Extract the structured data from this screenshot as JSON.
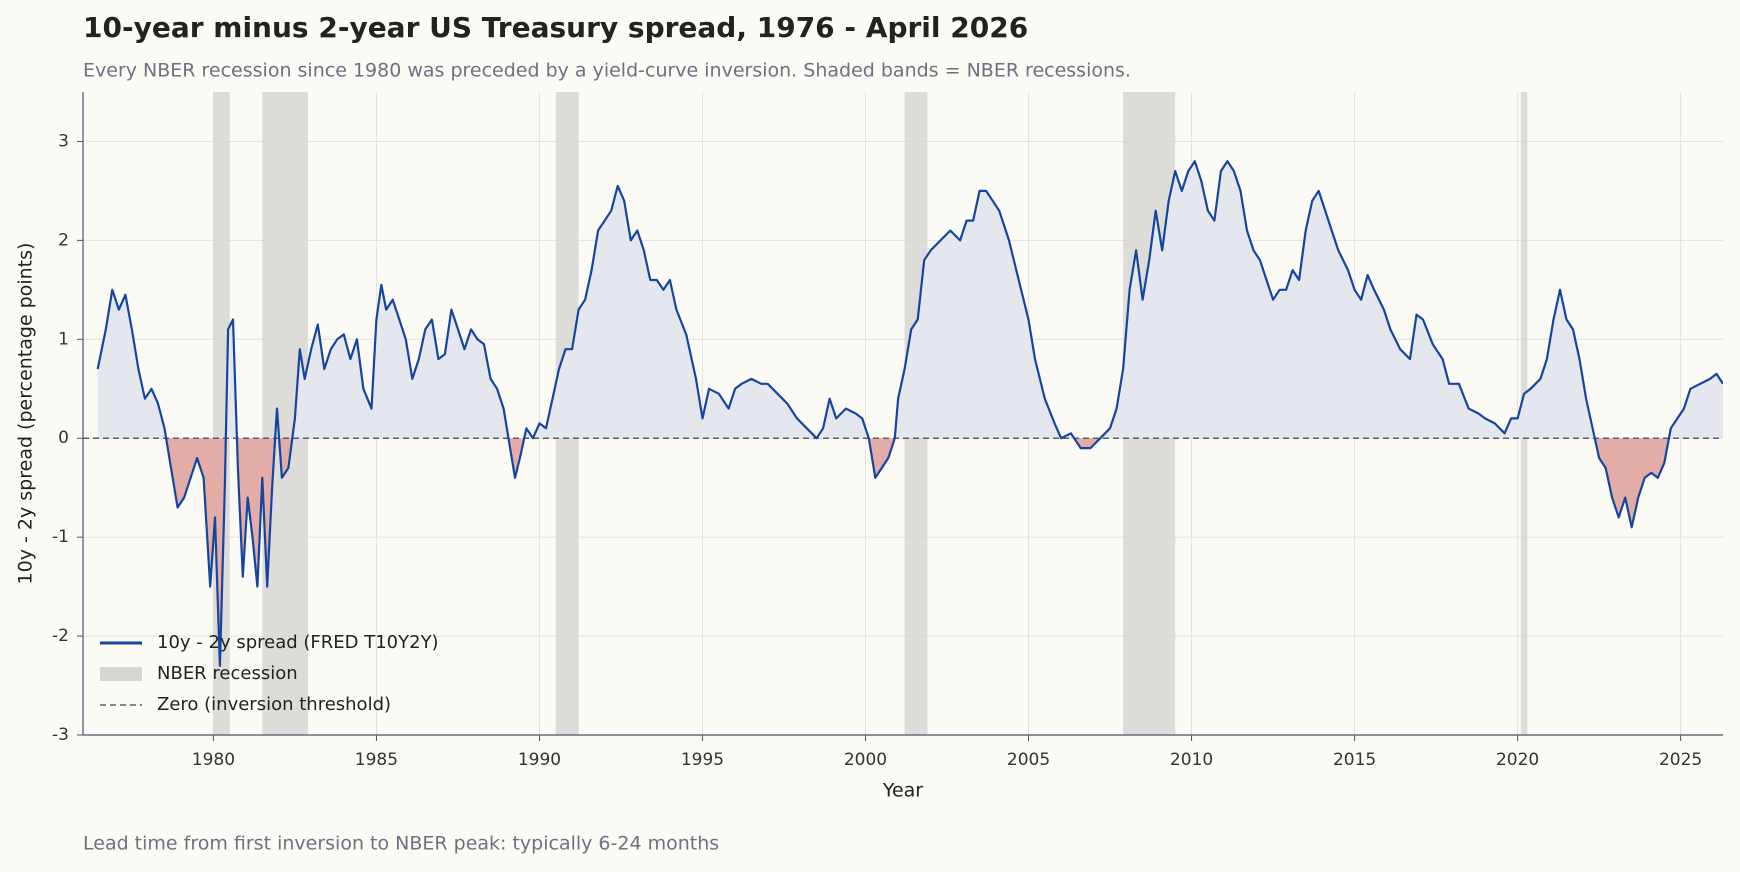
{
  "chart_data": {
    "type": "line",
    "title": "10-year minus 2-year US Treasury spread, 1976 - April 2026",
    "subtitle": "Every NBER recession since 1980 was preceded by a yield-curve inversion. Shaded bands = NBER recessions.",
    "x_label": "Year",
    "y_label": "10y - 2y spread (percentage points)",
    "note": "Lead time from first inversion to NBER peak: typically 6-24 months",
    "xlim": [
      1976,
      2026.3
    ],
    "ylim": [
      -3,
      3.5
    ],
    "xticks": [
      1980,
      1985,
      1990,
      1995,
      2000,
      2005,
      2010,
      2015,
      2020,
      2025
    ],
    "yticks": [
      -3,
      -2,
      -1,
      0,
      1,
      2,
      3
    ],
    "grid": true,
    "legend": "lower left",
    "positive_fill": "#e4e7ee",
    "negative_fill": "#e3aca6",
    "recession_label": "NBER recession",
    "recession_color": "#d6d5d1",
    "recessions": [
      [
        1980.0,
        1980.5
      ],
      [
        1981.5,
        1982.9
      ],
      [
        1990.5,
        1991.2
      ],
      [
        2001.2,
        2001.9
      ],
      [
        2007.9,
        2009.5
      ],
      [
        2020.1,
        2020.3
      ]
    ],
    "reference_line": {
      "value": 0,
      "label": "Zero (inversion threshold)",
      "color": "#5a5f6b"
    },
    "series": [
      {
        "name": "10y - 2y spread (FRED T10Y2Y)",
        "color": "#1446a0",
        "x": [
          1976.45,
          1976.7,
          1976.9,
          1977.1,
          1977.3,
          1977.5,
          1977.7,
          1977.9,
          1978.1,
          1978.3,
          1978.5,
          1978.7,
          1978.9,
          1979.1,
          1979.3,
          1979.5,
          1979.7,
          1979.9,
          1980.05,
          1980.2,
          1980.35,
          1980.45,
          1980.6,
          1980.75,
          1980.9,
          1981.05,
          1981.2,
          1981.35,
          1981.5,
          1981.65,
          1981.8,
          1981.95,
          1982.1,
          1982.3,
          1982.5,
          1982.65,
          1982.8,
          1983.0,
          1983.2,
          1983.4,
          1983.6,
          1983.8,
          1984.0,
          1984.2,
          1984.4,
          1984.6,
          1984.85,
          1985.0,
          1985.15,
          1985.3,
          1985.5,
          1985.7,
          1985.9,
          1986.1,
          1986.3,
          1986.5,
          1986.7,
          1986.9,
          1987.1,
          1987.3,
          1987.5,
          1987.7,
          1987.9,
          1988.1,
          1988.3,
          1988.5,
          1988.7,
          1988.9,
          1989.1,
          1989.25,
          1989.4,
          1989.6,
          1989.8,
          1990.0,
          1990.2,
          1990.4,
          1990.6,
          1990.8,
          1991.0,
          1991.2,
          1991.4,
          1991.6,
          1991.8,
          1992.0,
          1992.2,
          1992.4,
          1992.6,
          1992.8,
          1993.0,
          1993.2,
          1993.4,
          1993.6,
          1993.8,
          1994.0,
          1994.2,
          1994.5,
          1994.8,
          1995.0,
          1995.2,
          1995.5,
          1995.8,
          1996.0,
          1996.2,
          1996.5,
          1996.8,
          1997.0,
          1997.3,
          1997.6,
          1997.9,
          1998.2,
          1998.5,
          1998.7,
          1998.9,
          1999.1,
          1999.4,
          1999.7,
          1999.9,
          2000.1,
          2000.3,
          2000.5,
          2000.7,
          2000.9,
          2001.0,
          2001.2,
          2001.4,
          2001.6,
          2001.8,
          2002.0,
          2002.3,
          2002.6,
          2002.9,
          2003.1,
          2003.3,
          2003.5,
          2003.7,
          2003.9,
          2004.1,
          2004.4,
          2004.7,
          2005.0,
          2005.2,
          2005.5,
          2005.8,
          2006.0,
          2006.3,
          2006.6,
          2006.9,
          2007.2,
          2007.5,
          2007.7,
          2007.9,
          2008.1,
          2008.3,
          2008.5,
          2008.7,
          2008.9,
          2009.1,
          2009.3,
          2009.5,
          2009.7,
          2009.9,
          2010.1,
          2010.3,
          2010.5,
          2010.7,
          2010.9,
          2011.1,
          2011.3,
          2011.5,
          2011.7,
          2011.9,
          2012.1,
          2012.3,
          2012.5,
          2012.7,
          2012.9,
          2013.1,
          2013.3,
          2013.5,
          2013.7,
          2013.9,
          2014.1,
          2014.3,
          2014.5,
          2014.8,
          2015.0,
          2015.2,
          2015.4,
          2015.6,
          2015.9,
          2016.1,
          2016.4,
          2016.7,
          2016.9,
          2017.1,
          2017.4,
          2017.7,
          2017.9,
          2018.2,
          2018.5,
          2018.8,
          2019.0,
          2019.3,
          2019.6,
          2019.8,
          2020.0,
          2020.2,
          2020.4,
          2020.7,
          2020.9,
          2021.1,
          2021.3,
          2021.5,
          2021.7,
          2021.9,
          2022.1,
          2022.3,
          2022.5,
          2022.7,
          2022.9,
          2023.1,
          2023.3,
          2023.5,
          2023.7,
          2023.9,
          2024.1,
          2024.3,
          2024.5,
          2024.7,
          2024.9,
          2025.1,
          2025.3,
          2025.6,
          2025.9,
          2026.1,
          2026.3
        ],
        "values": [
          0.7,
          1.1,
          1.5,
          1.3,
          1.45,
          1.1,
          0.7,
          0.4,
          0.5,
          0.35,
          0.1,
          -0.3,
          -0.7,
          -0.6,
          -0.4,
          -0.2,
          -0.4,
          -1.5,
          -0.8,
          -2.3,
          -0.5,
          1.1,
          1.2,
          -0.3,
          -1.4,
          -0.6,
          -1.0,
          -1.5,
          -0.4,
          -1.5,
          -0.5,
          0.3,
          -0.4,
          -0.3,
          0.2,
          0.9,
          0.6,
          0.9,
          1.15,
          0.7,
          0.9,
          1.0,
          1.05,
          0.8,
          1.0,
          0.5,
          0.3,
          1.2,
          1.55,
          1.3,
          1.4,
          1.2,
          1.0,
          0.6,
          0.8,
          1.1,
          1.2,
          0.8,
          0.85,
          1.3,
          1.1,
          0.9,
          1.1,
          1.0,
          0.95,
          0.6,
          0.5,
          0.3,
          -0.1,
          -0.4,
          -0.2,
          0.1,
          0.0,
          0.15,
          0.1,
          0.4,
          0.7,
          0.9,
          0.9,
          1.3,
          1.4,
          1.7,
          2.1,
          2.2,
          2.3,
          2.55,
          2.4,
          2.0,
          2.1,
          1.9,
          1.6,
          1.6,
          1.5,
          1.6,
          1.3,
          1.05,
          0.6,
          0.2,
          0.5,
          0.45,
          0.3,
          0.5,
          0.55,
          0.6,
          0.55,
          0.55,
          0.45,
          0.35,
          0.2,
          0.1,
          0.0,
          0.1,
          0.4,
          0.2,
          0.3,
          0.25,
          0.2,
          0.0,
          -0.4,
          -0.3,
          -0.2,
          0.0,
          0.4,
          0.7,
          1.1,
          1.2,
          1.8,
          1.9,
          2.0,
          2.1,
          2.0,
          2.2,
          2.2,
          2.5,
          2.5,
          2.4,
          2.3,
          2.0,
          1.6,
          1.2,
          0.8,
          0.4,
          0.15,
          0.0,
          0.05,
          -0.1,
          -0.1,
          0.0,
          0.1,
          0.3,
          0.7,
          1.5,
          1.9,
          1.4,
          1.8,
          2.3,
          1.9,
          2.4,
          2.7,
          2.5,
          2.7,
          2.8,
          2.6,
          2.3,
          2.2,
          2.7,
          2.8,
          2.7,
          2.5,
          2.1,
          1.9,
          1.8,
          1.6,
          1.4,
          1.5,
          1.5,
          1.7,
          1.6,
          2.1,
          2.4,
          2.5,
          2.3,
          2.1,
          1.9,
          1.7,
          1.5,
          1.4,
          1.65,
          1.5,
          1.3,
          1.1,
          0.9,
          0.8,
          1.25,
          1.2,
          0.95,
          0.8,
          0.55,
          0.55,
          0.3,
          0.25,
          0.2,
          0.15,
          0.05,
          0.2,
          0.2,
          0.45,
          0.5,
          0.6,
          0.8,
          1.2,
          1.5,
          1.2,
          1.1,
          0.8,
          0.4,
          0.1,
          -0.2,
          -0.3,
          -0.6,
          -0.8,
          -0.6,
          -0.9,
          -0.6,
          -0.4,
          -0.35,
          -0.4,
          -0.25,
          0.1,
          0.2,
          0.3,
          0.5,
          0.55,
          0.6,
          0.65,
          0.55
        ]
      }
    ]
  }
}
